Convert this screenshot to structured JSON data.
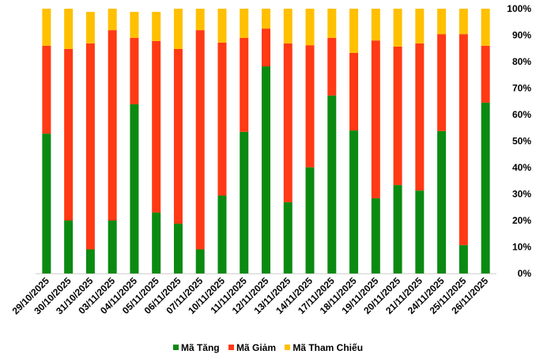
{
  "chart_data": {
    "type": "bar",
    "stacked": true,
    "percent": true,
    "categories": [
      "29/10/2025",
      "30/10/2025",
      "31/10/2025",
      "03/11/2025",
      "04/11/2025",
      "05/11/2025",
      "06/11/2025",
      "07/11/2025",
      "10/11/2025",
      "11/11/2025",
      "12/11/2025",
      "13/11/2025",
      "14/11/2025",
      "17/11/2025",
      "18/11/2025",
      "19/11/2025",
      "20/11/2025",
      "21/11/2025",
      "24/11/2025",
      "25/11/2025",
      "26/11/2025"
    ],
    "series": [
      {
        "name": "Mã Tăng",
        "color": "#0B8A12",
        "values": [
          52.8,
          20.0,
          9.1,
          20.0,
          63.9,
          23.0,
          18.8,
          9.1,
          29.4,
          53.5,
          78.2,
          26.9,
          40.1,
          67.2,
          54.0,
          28.4,
          33.4,
          31.3,
          53.8,
          10.7,
          64.5
        ]
      },
      {
        "name": "Mã Giảm",
        "color": "#FF3A14",
        "values": [
          33.2,
          64.8,
          77.8,
          71.9,
          25.1,
          64.8,
          66.0,
          82.8,
          57.8,
          35.5,
          14.3,
          60.0,
          46.1,
          21.8,
          29.3,
          59.6,
          52.3,
          55.6,
          36.6,
          79.7,
          21.5
        ]
      },
      {
        "name": "Mã Tham Chiếu",
        "color": "#FFC000",
        "values": [
          14.0,
          15.2,
          11.9,
          8.1,
          9.8,
          11.0,
          15.2,
          8.1,
          12.8,
          11.0,
          7.5,
          13.1,
          13.8,
          11.0,
          16.7,
          12.0,
          14.3,
          13.1,
          9.6,
          9.6,
          14.0
        ]
      }
    ],
    "yticks": [
      "0%",
      "10%",
      "20%",
      "30%",
      "40%",
      "50%",
      "60%",
      "70%",
      "80%",
      "90%",
      "100%"
    ],
    "ylim": [
      0,
      100
    ],
    "y_axis_position": "right",
    "grid": false,
    "legend_position": "bottom",
    "title": "",
    "xlabel": "",
    "ylabel": ""
  }
}
